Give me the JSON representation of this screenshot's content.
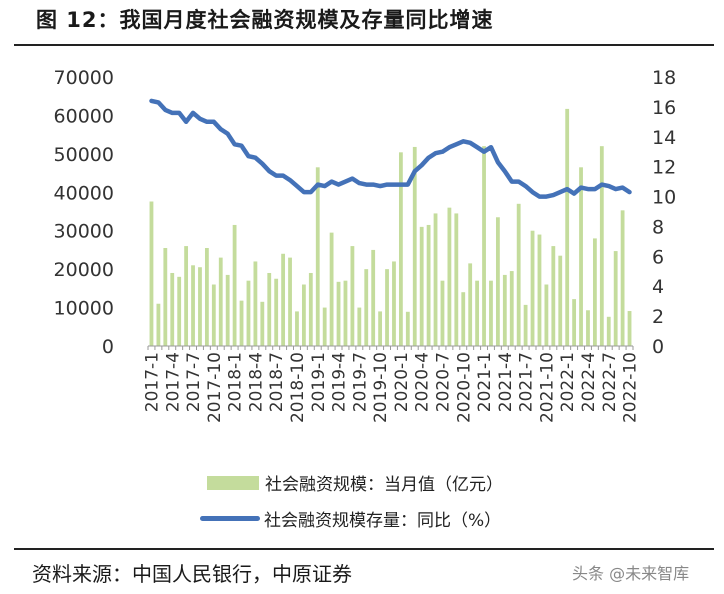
{
  "header": {
    "title": "图 12：我国月度社会融资规模及存量同比增速"
  },
  "footer": {
    "source": "资料来源：中国人民银行，中原证券",
    "watermark": "头条 @未来智库"
  },
  "chart_data": {
    "type": "bar+line",
    "categories": [
      "2017-1",
      "2017-2",
      "2017-3",
      "2017-4",
      "2017-5",
      "2017-6",
      "2017-7",
      "2017-8",
      "2017-9",
      "2017-10",
      "2017-11",
      "2017-12",
      "2018-1",
      "2018-2",
      "2018-3",
      "2018-4",
      "2018-5",
      "2018-6",
      "2018-7",
      "2018-8",
      "2018-9",
      "2018-10",
      "2018-11",
      "2018-12",
      "2019-1",
      "2019-2",
      "2019-3",
      "2019-4",
      "2019-5",
      "2019-6",
      "2019-7",
      "2019-8",
      "2019-9",
      "2019-10",
      "2019-11",
      "2019-12",
      "2020-1",
      "2020-2",
      "2020-3",
      "2020-4",
      "2020-5",
      "2020-6",
      "2020-7",
      "2020-8",
      "2020-9",
      "2020-10",
      "2020-11",
      "2020-12",
      "2021-1",
      "2021-2",
      "2021-3",
      "2021-4",
      "2021-5",
      "2021-6",
      "2021-7",
      "2021-8",
      "2021-9",
      "2021-10",
      "2021-11",
      "2021-12",
      "2022-1",
      "2022-2",
      "2022-3",
      "2022-4",
      "2022-5",
      "2022-6",
      "2022-7",
      "2022-8",
      "2022-9",
      "2022-10"
    ],
    "x_tick_labels": [
      "2017-1",
      "2017-4",
      "2017-7",
      "2017-10",
      "2018-1",
      "2018-4",
      "2018-7",
      "2018-10",
      "2019-1",
      "2019-4",
      "2019-7",
      "2019-10",
      "2020-1",
      "2020-4",
      "2020-7",
      "2020-10",
      "2021-1",
      "2021-4",
      "2021-7",
      "2021-10",
      "2022-1",
      "2022-4",
      "2022-7",
      "2022-10"
    ],
    "left_axis": {
      "ylim": [
        0,
        70000
      ],
      "ticks": [
        "0",
        "10000",
        "20000",
        "30000",
        "40000",
        "50000",
        "60000",
        "70000"
      ]
    },
    "right_axis": {
      "ylim": [
        0,
        18
      ],
      "ticks": [
        "0",
        "2",
        "4",
        "6",
        "8",
        "10",
        "12",
        "14",
        "16",
        "18"
      ]
    },
    "series": [
      {
        "name": "社会融资规模：当月值（亿元）",
        "type": "bar",
        "axis": "left",
        "color": "#c4dc9c",
        "values": [
          37600,
          11000,
          25500,
          19000,
          18000,
          26000,
          21000,
          20500,
          25500,
          16000,
          23000,
          18500,
          31500,
          11800,
          17000,
          22000,
          11500,
          19000,
          17500,
          24000,
          23000,
          9000,
          16000,
          19000,
          46500,
          10000,
          29500,
          16700,
          17000,
          26000,
          10000,
          20000,
          25000,
          9000,
          20000,
          22000,
          50400,
          8900,
          51800,
          31000,
          31500,
          34500,
          17000,
          36000,
          34500,
          14000,
          21500,
          17000,
          52000,
          17000,
          33500,
          18500,
          19500,
          37000,
          10700,
          30000,
          29000,
          16000,
          26000,
          23500,
          61700,
          12200,
          46500,
          9300,
          28000,
          52000,
          7600,
          24700,
          35300,
          9100
        ]
      },
      {
        "name": "社会融资规模存量：同比（%）",
        "type": "line",
        "axis": "right",
        "color": "#4472b8",
        "values": [
          16.4,
          16.3,
          15.8,
          15.6,
          15.6,
          15.0,
          15.6,
          15.2,
          15.0,
          15.0,
          14.5,
          14.2,
          13.5,
          13.4,
          12.7,
          12.6,
          12.2,
          11.7,
          11.4,
          11.4,
          11.1,
          10.7,
          10.3,
          10.3,
          10.8,
          10.7,
          11.0,
          10.8,
          11.0,
          11.2,
          10.9,
          10.8,
          10.8,
          10.7,
          10.8,
          10.8,
          10.8,
          10.8,
          11.7,
          12.1,
          12.6,
          12.9,
          13.0,
          13.3,
          13.5,
          13.7,
          13.6,
          13.3,
          13.0,
          13.3,
          12.3,
          11.7,
          11.0,
          11.0,
          10.7,
          10.3,
          10.0,
          10.0,
          10.1,
          10.3,
          10.5,
          10.2,
          10.6,
          10.5,
          10.5,
          10.8,
          10.7,
          10.5,
          10.6,
          10.3
        ]
      }
    ]
  }
}
